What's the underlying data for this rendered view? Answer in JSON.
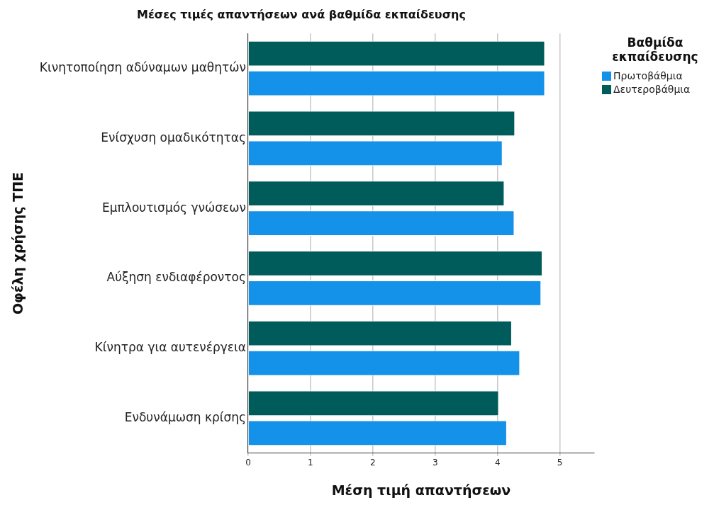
{
  "chart_data": {
    "type": "bar",
    "orientation": "horizontal",
    "title": "Μέσες τιμές απαντήσεων ανά βαθμίδα εκπαίδευσης",
    "xlabel": "Μέση τιμή απαντήσεων",
    "ylabel": "Οφέλη χρήσης ΤΠΕ",
    "legend_title": "Βαθμίδα εκπαίδευσης",
    "categories": [
      "Κινητοποίηση αδύναμων μαθητών",
      "Ενίσχυση ομαδικότητας",
      "Εμπλουτισμός γνώσεων",
      "Αύξηση ενδιαφέροντος",
      "Κίνητρα για αυτενέργεια",
      "Ενδυνάμωση κρίσης"
    ],
    "series": [
      {
        "name": "Πρωτοβάθμια",
        "color": "#1491e8",
        "values": [
          4.76,
          4.08,
          4.27,
          4.7,
          4.36,
          4.15
        ]
      },
      {
        "name": "Δευτεροβάθμια",
        "color": "#005c5a",
        "values": [
          4.76,
          4.28,
          4.11,
          4.72,
          4.23,
          4.02
        ]
      }
    ],
    "xlim": [
      0,
      5.55
    ],
    "xticks": [
      0,
      1,
      2,
      3,
      4,
      5
    ],
    "grid": "x",
    "legend": "top right"
  }
}
